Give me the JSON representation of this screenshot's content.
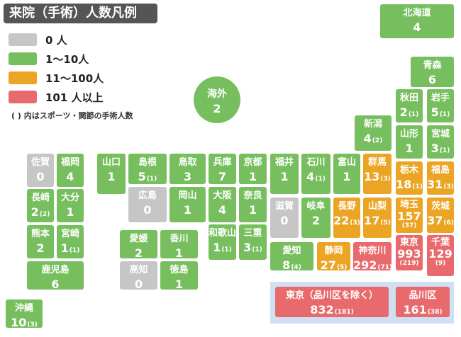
{
  "title": "来院（手術）人数凡例",
  "legend": [
    {
      "label": "0 人",
      "color": "#c6c6c6"
    },
    {
      "label": "1～10人",
      "color": "#77bf5e"
    },
    {
      "label": "11～100人",
      "color": "#eba424"
    },
    {
      "label": "101 人以上",
      "color": "#e86a6c"
    }
  ],
  "note": "( ) 内はスポーツ・関節の手術人数",
  "overseas": {
    "name": "海外",
    "value": "2"
  },
  "prefectures": {
    "hokkaido": {
      "name": "北海道",
      "value": "4"
    },
    "aomori": {
      "name": "青森",
      "value": "6"
    },
    "akita": {
      "name": "秋田",
      "value": "2",
      "sub": "(1)"
    },
    "iwate": {
      "name": "岩手",
      "value": "5",
      "sub": "(1)"
    },
    "yamagata": {
      "name": "山形",
      "value": "1"
    },
    "miyagi": {
      "name": "宮城",
      "value": "3",
      "sub": "(1)"
    },
    "niigata": {
      "name": "新潟",
      "value": "4",
      "sub": "(2)"
    },
    "tochigi": {
      "name": "栃木",
      "value": "18",
      "sub": "(1)"
    },
    "fukushima": {
      "name": "福島",
      "value": "31",
      "sub": "(3)"
    },
    "gunma": {
      "name": "群馬",
      "value": "13",
      "sub": "(3)"
    },
    "saitama": {
      "name": "埼玉",
      "value": "157",
      "sub": "(37)"
    },
    "ibaraki": {
      "name": "茨城",
      "value": "37",
      "sub": "(6)"
    },
    "tokyo": {
      "name": "東京",
      "value": "993",
      "sub": "(219)"
    },
    "chiba": {
      "name": "千葉",
      "value": "129",
      "sub": "(9)"
    },
    "kanagawa": {
      "name": "神奈川",
      "value": "292",
      "sub": "(71)"
    },
    "yamanashi": {
      "name": "山梨",
      "value": "17",
      "sub": "(5)"
    },
    "nagano": {
      "name": "長野",
      "value": "22",
      "sub": "(3)"
    },
    "shizuoka": {
      "name": "静岡",
      "value": "27",
      "sub": "(5)"
    },
    "toyama": {
      "name": "富山",
      "value": "1"
    },
    "ishikawa": {
      "name": "石川",
      "value": "4",
      "sub": "(1)"
    },
    "fukui": {
      "name": "福井",
      "value": "1"
    },
    "gifu": {
      "name": "岐阜",
      "value": "2"
    },
    "aichi": {
      "name": "愛知",
      "value": "8",
      "sub": "(4)"
    },
    "shiga": {
      "name": "滋賀",
      "value": "0"
    },
    "kyoto": {
      "name": "京都",
      "value": "1"
    },
    "nara": {
      "name": "奈良",
      "value": "1"
    },
    "mie": {
      "name": "三重",
      "value": "3",
      "sub": "(1)"
    },
    "osaka": {
      "name": "大阪",
      "value": "4"
    },
    "wakayama": {
      "name": "和歌山",
      "value": "1",
      "sub": "(1)"
    },
    "hyogo": {
      "name": "兵庫",
      "value": "7"
    },
    "tottori": {
      "name": "鳥取",
      "value": "3"
    },
    "okayama": {
      "name": "岡山",
      "value": "1"
    },
    "shimane": {
      "name": "島根",
      "value": "5",
      "sub": "(1)"
    },
    "hiroshima": {
      "name": "広島",
      "value": "0"
    },
    "yamaguchi": {
      "name": "山口",
      "value": "1"
    },
    "kagawa": {
      "name": "香川",
      "value": "1"
    },
    "ehime": {
      "name": "愛媛",
      "value": "2"
    },
    "tokushima": {
      "name": "徳島",
      "value": "1"
    },
    "kochi": {
      "name": "高知",
      "value": "0"
    },
    "fukuoka": {
      "name": "福岡",
      "value": "4"
    },
    "saga": {
      "name": "佐賀",
      "value": "0"
    },
    "nagasaki": {
      "name": "長崎",
      "value": "2",
      "sub": "(2)"
    },
    "oita": {
      "name": "大分",
      "value": "1"
    },
    "kumamoto": {
      "name": "熊本",
      "value": "2"
    },
    "miyazaki": {
      "name": "宮崎",
      "value": "1",
      "sub": "(1)"
    },
    "kagoshima": {
      "name": "鹿児島",
      "value": "6"
    },
    "okinawa": {
      "name": "沖縄",
      "value": "10",
      "sub": "(3)"
    }
  },
  "tokyo_detail": {
    "excluding": {
      "name": "東京（品川区を除く）",
      "value": "832",
      "sub": "(181)"
    },
    "shinagawa": {
      "name": "品川区",
      "value": "161",
      "sub": "(38)"
    }
  }
}
